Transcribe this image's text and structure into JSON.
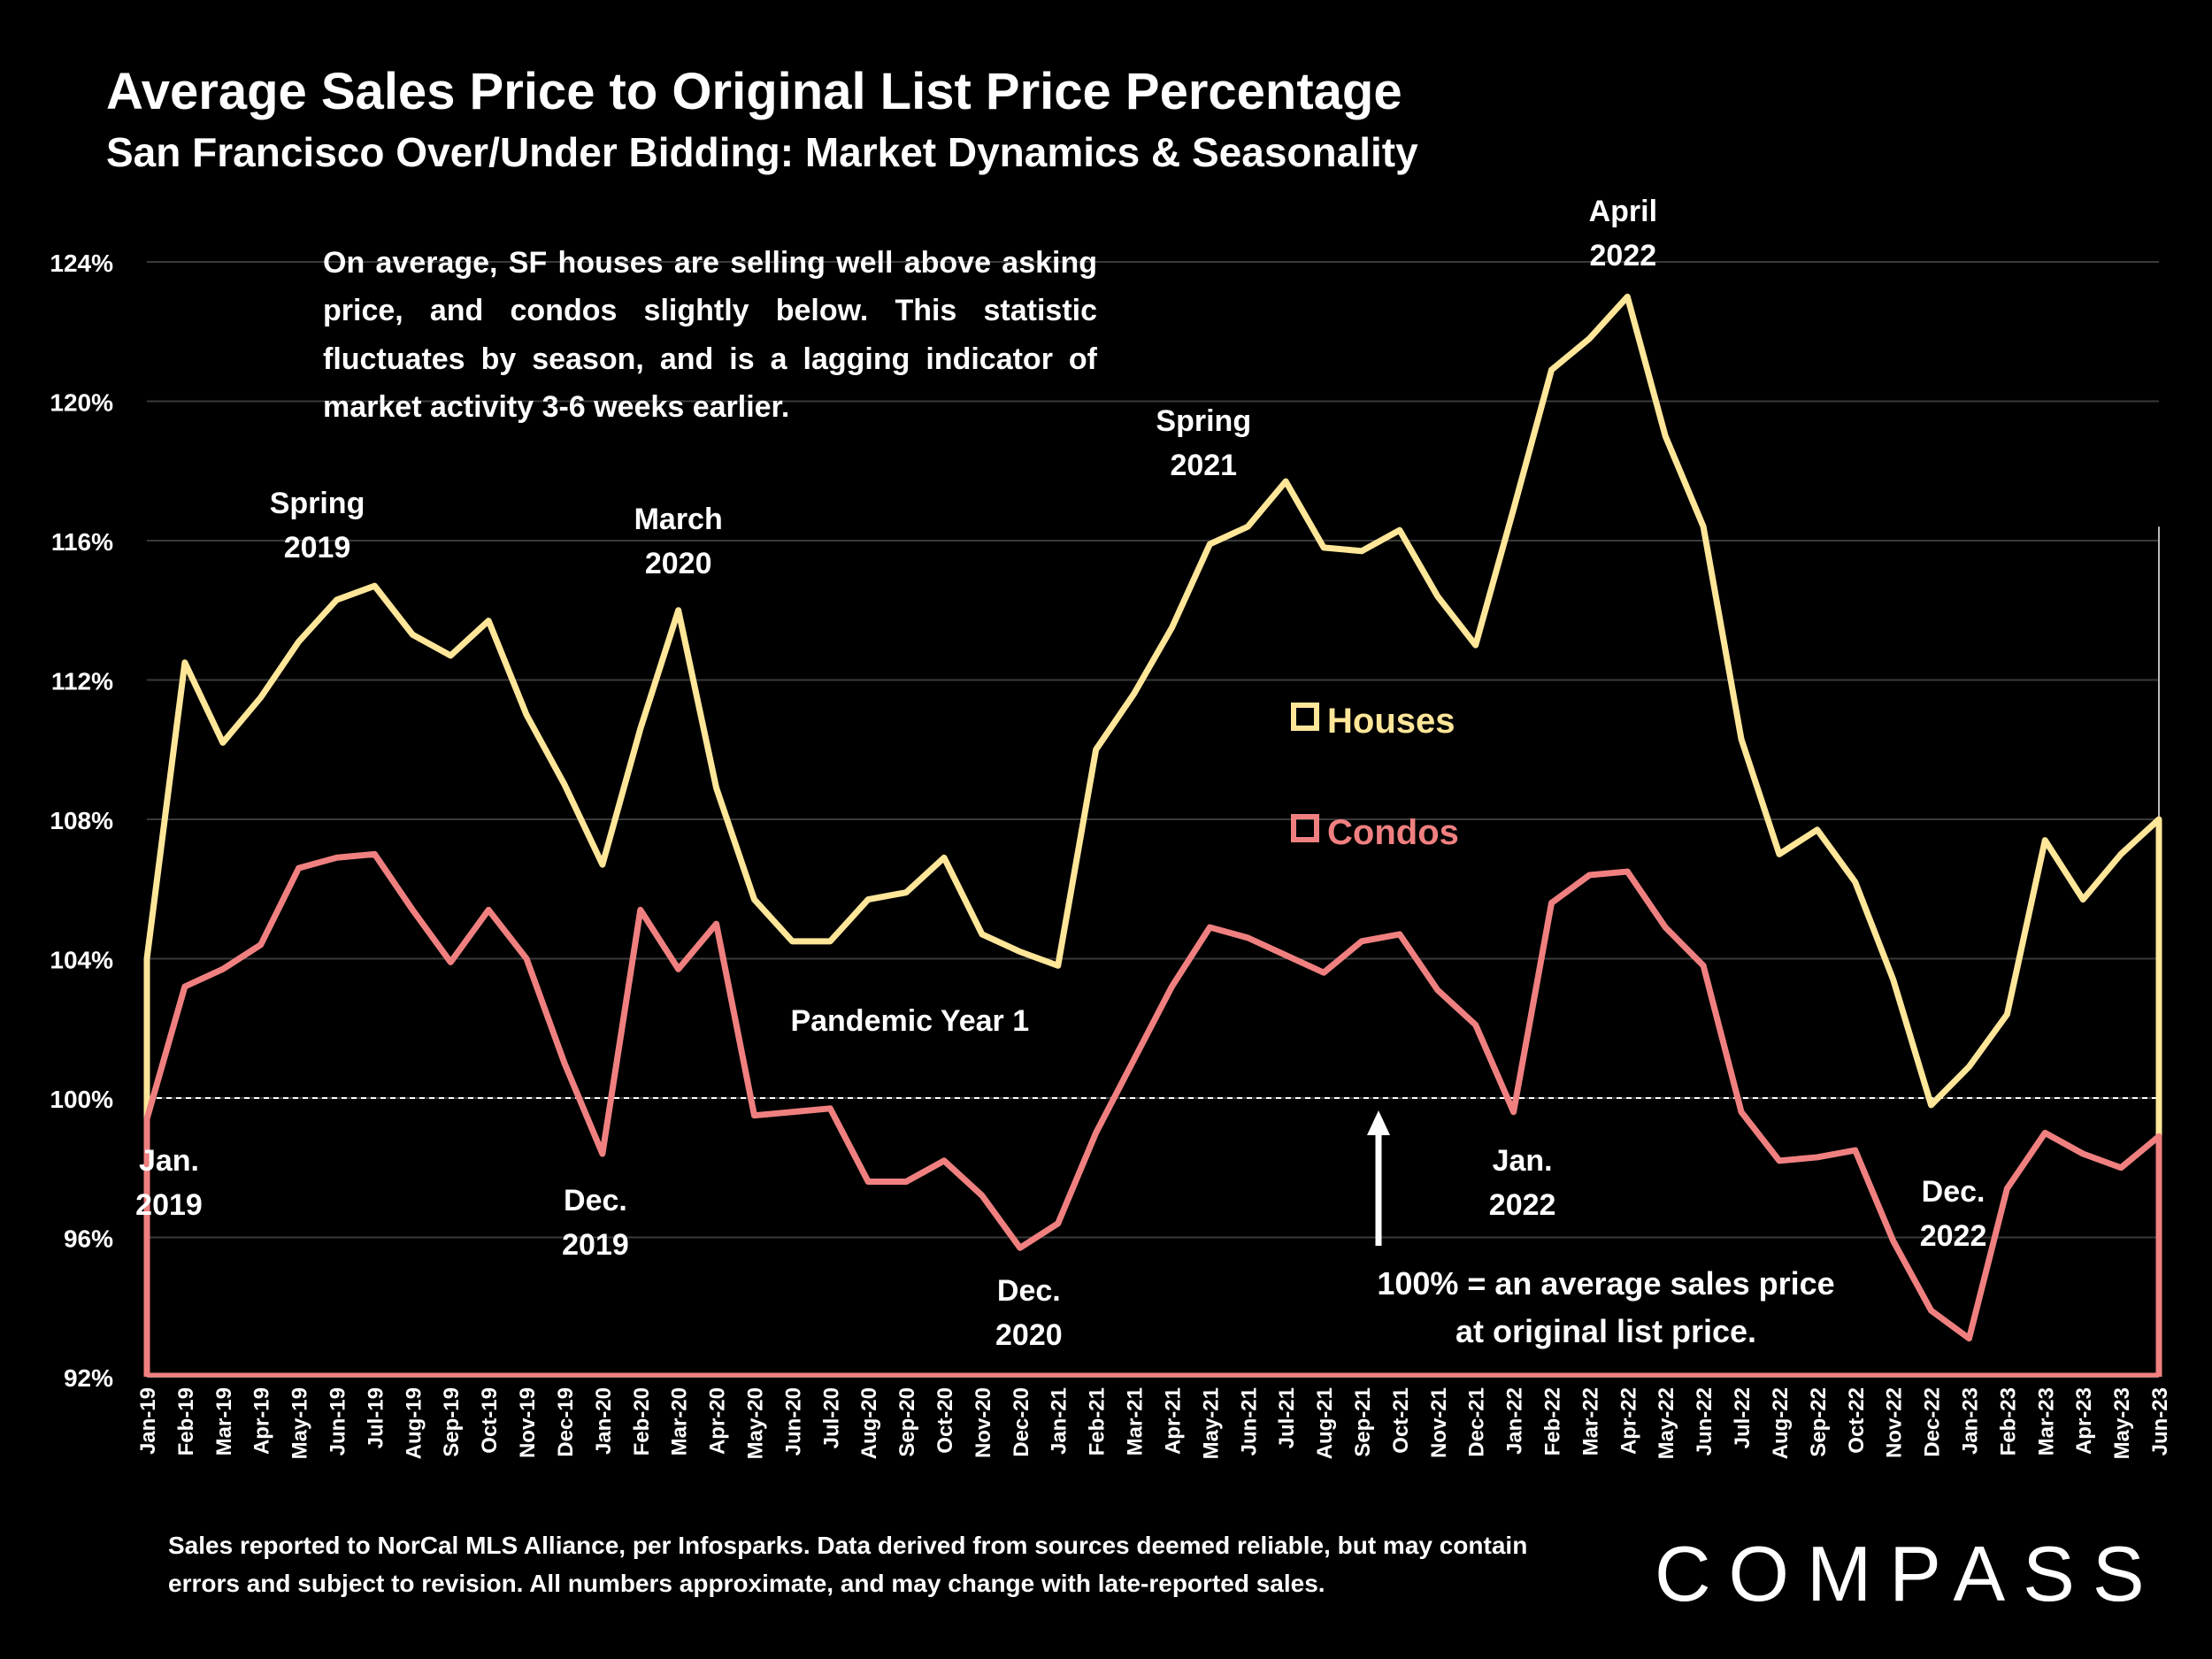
{
  "title": "Average Sales Price to Original List Price Percentage",
  "subtitle": "San Francisco Over/Under Bidding: Market Dynamics & Seasonality",
  "note_main": "On average, SF houses are selling well above asking price, and condos slightly below. This statistic fluctuates by season, and is a lagging indicator of market activity 3-6 weeks earlier.",
  "note_100": "100% = an average sales price at original list price.",
  "footer": "Sales reported to NorCal MLS Alliance, per Infosparks. Data derived from sources deemed reliable, but may contain errors and subject to revision. All numbers approximate, and may change with late-reported sales.",
  "logo": "COMPASS",
  "colors": {
    "houses": "#FFE699",
    "condos": "#F08080",
    "background": "#000000",
    "text": "#FFFFFF"
  },
  "chart_data": {
    "type": "line",
    "title": "Average Sales Price to Original List Price Percentage",
    "xlabel": "",
    "ylabel": "",
    "ylim": [
      92,
      124
    ],
    "yticks": [
      "92%",
      "96%",
      "100%",
      "104%",
      "108%",
      "112%",
      "116%",
      "120%",
      "124%"
    ],
    "reference_line": 100,
    "legend_position": "center-right",
    "grid": "horizontal",
    "x": [
      "Jan-19",
      "Feb-19",
      "Mar-19",
      "Apr-19",
      "May-19",
      "Jun-19",
      "Jul-19",
      "Aug-19",
      "Sep-19",
      "Oct-19",
      "Nov-19",
      "Dec-19",
      "Jan-20",
      "Feb-20",
      "Mar-20",
      "Apr-20",
      "May-20",
      "Jun-20",
      "Jul-20",
      "Aug-20",
      "Sep-20",
      "Oct-20",
      "Nov-20",
      "Dec-20",
      "Jan-21",
      "Feb-21",
      "Mar-21",
      "Apr-21",
      "May-21",
      "Jun-21",
      "Jul-21",
      "Aug-21",
      "Sep-21",
      "Oct-21",
      "Nov-21",
      "Dec-21",
      "Jan-22",
      "Feb-22",
      "Mar-22",
      "Apr-22",
      "May-22",
      "Jun-22",
      "Jul-22",
      "Aug-22",
      "Sep-22",
      "Oct-22",
      "Nov-22",
      "Dec-22",
      "Jan-23",
      "Feb-23",
      "Mar-23",
      "Apr-23",
      "May-23",
      "Jun-23"
    ],
    "series": [
      {
        "name": "Houses",
        "values": [
          104.0,
          112.5,
          110.2,
          111.5,
          113.1,
          114.3,
          114.7,
          113.3,
          112.7,
          113.7,
          111.0,
          109.0,
          106.7,
          110.6,
          114.0,
          108.9,
          105.7,
          104.5,
          104.5,
          105.7,
          105.9,
          106.9,
          104.7,
          104.2,
          103.8,
          110.0,
          111.6,
          113.5,
          115.9,
          116.4,
          117.7,
          115.8,
          115.7,
          116.3,
          114.4,
          113.0,
          116.9,
          120.9,
          121.8,
          123.0,
          119.0,
          116.4,
          110.3,
          107.0,
          107.7,
          106.2,
          103.4,
          99.8,
          100.9,
          102.4,
          107.4,
          105.7,
          107.0,
          108.0
        ]
      },
      {
        "name": "Condos",
        "values": [
          99.4,
          103.2,
          103.7,
          104.4,
          106.6,
          106.9,
          107.0,
          105.4,
          103.9,
          105.4,
          104.0,
          101.0,
          98.4,
          105.4,
          103.7,
          105.0,
          99.5,
          99.6,
          99.7,
          97.6,
          97.6,
          98.2,
          97.2,
          95.7,
          96.4,
          99.0,
          101.1,
          103.2,
          104.9,
          104.6,
          104.1,
          103.6,
          104.5,
          104.7,
          103.1,
          102.1,
          99.6,
          105.6,
          106.4,
          106.5,
          104.9,
          103.8,
          99.6,
          98.2,
          98.3,
          98.5,
          95.9,
          93.9,
          93.1,
          97.4,
          99.0,
          98.4,
          98.0,
          98.9
        ]
      }
    ],
    "annotations": [
      {
        "text": "Spring 2019",
        "x": "Jun-19"
      },
      {
        "text": "March 2020",
        "x": "Mar-20"
      },
      {
        "text": "Spring 2021",
        "x": "Jun-21"
      },
      {
        "text": "April 2022",
        "x": "Apr-22"
      },
      {
        "text": "Jan. 2019",
        "x": "Jan-19"
      },
      {
        "text": "Dec. 2019",
        "x": "Dec-19"
      },
      {
        "text": "Pandemic Year 1",
        "x": "Jul-20"
      },
      {
        "text": "Dec. 2020",
        "x": "Dec-20"
      },
      {
        "text": "Jan. 2022",
        "x": "Jan-22"
      },
      {
        "text": "Dec. 2022",
        "x": "Dec-22"
      }
    ]
  }
}
